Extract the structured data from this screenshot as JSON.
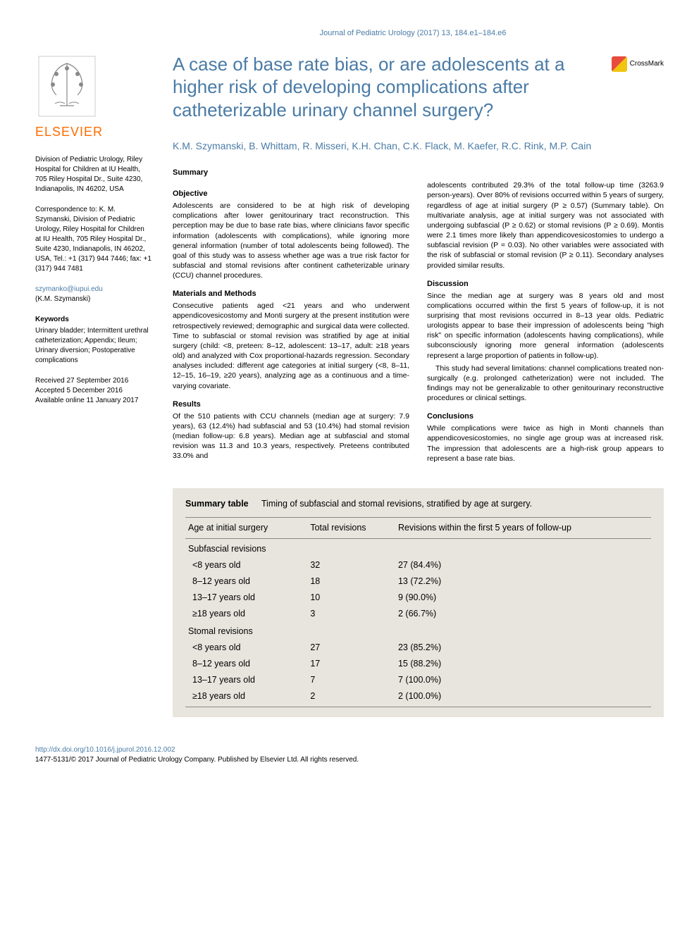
{
  "journal_line": "Journal of Pediatric Urology (2017) 13, 184.e1–184.e6",
  "publisher_name": "ELSEVIER",
  "crossmark_label": "CrossMark",
  "title": "A case of base rate bias, or are adolescents at a higher risk of developing complications after catheterizable urinary channel surgery?",
  "authors": "K.M. Szymanski, B. Whittam, R. Misseri, K.H. Chan, C.K. Flack, M. Kaefer, R.C. Rink, M.P. Cain",
  "sidebar": {
    "affiliation": "Division of Pediatric Urology, Riley Hospital for Children at IU Health, 705 Riley Hospital Dr., Suite 4230, Indianapolis, IN 46202, USA",
    "correspondence_label": "Correspondence to:",
    "correspondence": "K. M. Szymanski, Division of Pediatric Urology, Riley Hospital for Children at IU Health, 705 Riley Hospital Dr., Suite 4230, Indianapolis, IN 46202, USA, Tel.: +1 (317) 944 7446; fax: +1 (317) 944 7481",
    "email": "szymanko@iupui.edu",
    "email_name": "(K.M. Szymanski)",
    "keywords_label": "Keywords",
    "keywords": "Urinary bladder; Intermittent urethral catheterization; Appendix; Ileum; Urinary diversion; Postoperative complications",
    "dates": "Received 27 September 2016\nAccepted 5 December 2016\nAvailable online 11 January 2017"
  },
  "summary": {
    "heading": "Summary",
    "objective_h": "Objective",
    "objective": "Adolescents are considered to be at high risk of developing complications after lower genitourinary tract reconstruction. This perception may be due to base rate bias, where clinicians favor specific information (adolescents with complications), while ignoring more general information (number of total adolescents being followed). The goal of this study was to assess whether age was a true risk factor for subfascial and stomal revisions after continent catheterizable urinary (CCU) channel procedures.",
    "methods_h": "Materials and Methods",
    "methods": "Consecutive patients aged <21 years and who underwent appendicovesicostomy and Monti surgery at the present institution were retrospectively reviewed; demographic and surgical data were collected. Time to subfascial or stomal revision was stratified by age at initial surgery (child: <8, preteen: 8–12, adolescent: 13–17, adult: ≥18 years old) and analyzed with Cox proportional-hazards regression. Secondary analyses included: different age categories at initial surgery (<8, 8–11, 12–15, 16–19, ≥20 years), analyzing age as a continuous and a time-varying covariate.",
    "results_h": "Results",
    "results1": "Of the 510 patients with CCU channels (median age at surgery: 7.9 years), 63 (12.4%) had subfascial and 53 (10.4%) had stomal revision (median follow-up: 6.8 years). Median age at subfascial and stomal revision was 11.3 and 10.3 years, respectively. Preteens contributed 33.0% and",
    "results2": "adolescents contributed 29.3% of the total follow-up time (3263.9 person-years). Over 80% of revisions occurred within 5 years of surgery, regardless of age at initial surgery (P ≥ 0.57) (Summary table). On multivariate analysis, age at initial surgery was not associated with undergoing subfascial (P ≥ 0.62) or stomal revisions (P ≥ 0.69). Montis were 2.1 times more likely than appendicovesicostomies to undergo a subfascial revision (P = 0.03). No other variables were associated with the risk of subfascial or stomal revision (P ≥ 0.11). Secondary analyses provided similar results.",
    "discussion_h": "Discussion",
    "discussion1": "Since the median age at surgery was 8 years old and most complications occurred within the first 5 years of follow-up, it is not surprising that most revisions occurred in 8–13 year olds. Pediatric urologists appear to base their impression of adolescents being \"high risk\" on specific information (adolescents having complications), while subconsciously ignoring more general information (adolescents represent a large proportion of patients in follow-up).",
    "discussion2": "This study had several limitations: channel complications treated non-surgically (e.g. prolonged catheterization) were not included. The findings may not be generalizable to other genitourinary reconstructive procedures or clinical settings.",
    "conclusions_h": "Conclusions",
    "conclusions": "While complications were twice as high in Monti channels than appendicovesicostomies, no single age group was at increased risk. The impression that adolescents are a high-risk group appears to represent a base rate bias."
  },
  "table": {
    "label": "Summary table",
    "caption": "Timing of subfascial and stomal revisions, stratified by age at surgery.",
    "background_color": "#e8e5de",
    "border_color": "#888888",
    "columns": [
      "Age at initial surgery",
      "Total revisions",
      "Revisions within the first 5 years of follow-up"
    ],
    "sections": [
      {
        "label": "Subfascial revisions",
        "rows": [
          [
            "<8 years old",
            "32",
            "27 (84.4%)"
          ],
          [
            "8–12 years old",
            "18",
            "13 (72.2%)"
          ],
          [
            "13–17 years old",
            "10",
            "9 (90.0%)"
          ],
          [
            "≥18 years old",
            "3",
            "2 (66.7%)"
          ]
        ]
      },
      {
        "label": "Stomal revisions",
        "rows": [
          [
            "<8 years old",
            "27",
            "23 (85.2%)"
          ],
          [
            "8–12 years old",
            "17",
            "15 (88.2%)"
          ],
          [
            "13–17 years old",
            "7",
            "7 (100.0%)"
          ],
          [
            "≥18 years old",
            "2",
            "2 (100.0%)"
          ]
        ]
      }
    ]
  },
  "footer": {
    "doi": "http://dx.doi.org/10.1016/j.jpurol.2016.12.002",
    "copyright": "1477-5131/© 2017 Journal of Pediatric Urology Company. Published by Elsevier Ltd. All rights reserved."
  },
  "colors": {
    "link_blue": "#4a7ba6",
    "elsevier_orange": "#ff6c00",
    "text": "#000000",
    "background": "#ffffff"
  }
}
